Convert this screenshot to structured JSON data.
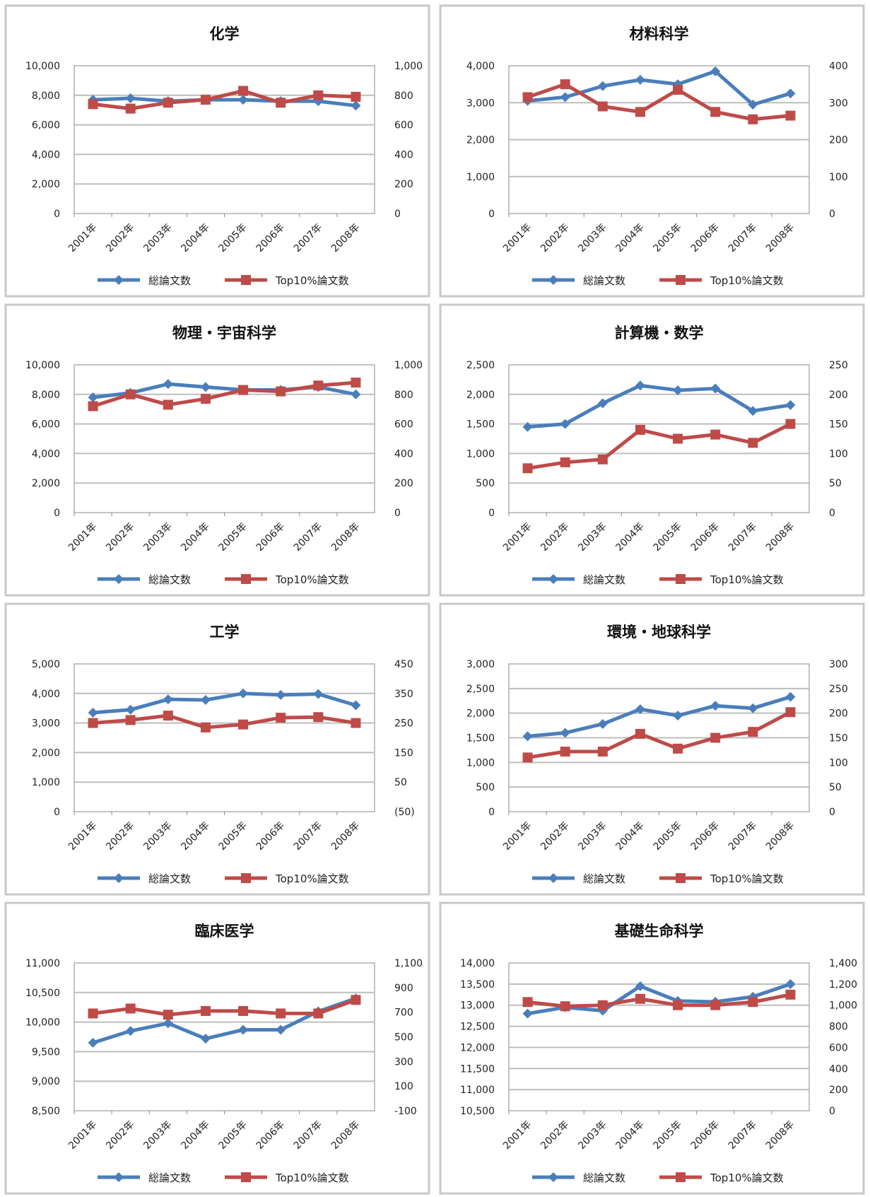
{
  "colors": {
    "total": "#4a7ebb",
    "top10": "#be4b48",
    "grid": "#bdbdbd",
    "frame": "#c8c8c8",
    "plot_border": "#8a8a8a"
  },
  "legend": {
    "total": "総論文数",
    "top10": "Top10%論文数"
  },
  "chart_data": [
    {
      "type": "line",
      "title": "化学",
      "categories": [
        "2001年",
        "2002年",
        "2003年",
        "2004年",
        "2005年",
        "2006年",
        "2007年",
        "2008年"
      ],
      "ylim": [
        0,
        10000
      ],
      "y_ticks": [
        "0",
        "2,000",
        "4,000",
        "6,000",
        "8,000",
        "10,000"
      ],
      "y2lim": [
        0,
        1000
      ],
      "y2_ticks": [
        "0",
        "200",
        "400",
        "600",
        "800",
        "1,000"
      ],
      "grid": true,
      "legend_position": "bottom",
      "series": [
        {
          "name": "総論文数",
          "axis": "left",
          "values": [
            7700,
            7800,
            7600,
            7700,
            7700,
            7600,
            7600,
            7300
          ]
        },
        {
          "name": "Top10%論文数",
          "axis": "right",
          "values": [
            740,
            710,
            750,
            770,
            830,
            750,
            800,
            790
          ]
        }
      ]
    },
    {
      "type": "line",
      "title": "材料科学",
      "categories": [
        "2001年",
        "2002年",
        "2003年",
        "2004年",
        "2005年",
        "2006年",
        "2007年",
        "2008年"
      ],
      "ylim": [
        0,
        4000
      ],
      "y_ticks": [
        "0",
        "1,000",
        "2,000",
        "3,000",
        "4,000"
      ],
      "y2lim": [
        0,
        400
      ],
      "y2_ticks": [
        "0",
        "100",
        "200",
        "300",
        "400"
      ],
      "grid": true,
      "legend_position": "bottom",
      "series": [
        {
          "name": "総論文数",
          "axis": "left",
          "values": [
            3050,
            3150,
            3450,
            3620,
            3500,
            3850,
            2950,
            3250
          ]
        },
        {
          "name": "Top10%論文数",
          "axis": "right",
          "values": [
            315,
            350,
            290,
            275,
            335,
            275,
            255,
            265
          ]
        }
      ]
    },
    {
      "type": "line",
      "title": "物理・宇宙科学",
      "categories": [
        "2001年",
        "2002年",
        "2003年",
        "2004年",
        "2005年",
        "2006年",
        "2007年",
        "2008年"
      ],
      "ylim": [
        0,
        10000
      ],
      "y_ticks": [
        "0",
        "2,000",
        "4,000",
        "6,000",
        "8,000",
        "10,000"
      ],
      "y2lim": [
        0,
        1000
      ],
      "y2_ticks": [
        "0",
        "200",
        "400",
        "600",
        "800",
        "1,000"
      ],
      "grid": true,
      "legend_position": "bottom",
      "series": [
        {
          "name": "総論文数",
          "axis": "left",
          "values": [
            7800,
            8100,
            8700,
            8500,
            8300,
            8300,
            8500,
            8000
          ]
        },
        {
          "name": "Top10%論文数",
          "axis": "right",
          "values": [
            720,
            800,
            730,
            770,
            830,
            820,
            860,
            880
          ]
        }
      ]
    },
    {
      "type": "line",
      "title": "計算機・数学",
      "categories": [
        "2001年",
        "2002年",
        "2003年",
        "2004年",
        "2005年",
        "2006年",
        "2007年",
        "2008年"
      ],
      "ylim": [
        0,
        2500
      ],
      "y_ticks": [
        "0",
        "500",
        "1,000",
        "1,500",
        "2,000",
        "2,500"
      ],
      "y2lim": [
        0,
        250
      ],
      "y2_ticks": [
        "0",
        "50",
        "100",
        "150",
        "200",
        "250"
      ],
      "grid": true,
      "legend_position": "bottom",
      "series": [
        {
          "name": "総論文数",
          "axis": "left",
          "values": [
            1450,
            1500,
            1850,
            2150,
            2070,
            2100,
            1720,
            1820
          ]
        },
        {
          "name": "Top10%論文数",
          "axis": "right",
          "values": [
            75,
            85,
            90,
            140,
            125,
            132,
            118,
            150
          ]
        }
      ]
    },
    {
      "type": "line",
      "title": "工学",
      "categories": [
        "2001年",
        "2002年",
        "2003年",
        "2004年",
        "2005年",
        "2006年",
        "2007年",
        "2008年"
      ],
      "ylim": [
        0,
        5000
      ],
      "y_ticks": [
        "0",
        "1,000",
        "2,000",
        "3,000",
        "4,000",
        "5,000"
      ],
      "y2lim": [
        -50,
        450
      ],
      "y2_ticks": [
        "(50)",
        "50",
        "150",
        "250",
        "350",
        "450"
      ],
      "grid": true,
      "legend_position": "bottom",
      "series": [
        {
          "name": "総論文数",
          "axis": "left",
          "values": [
            3350,
            3450,
            3800,
            3780,
            4000,
            3950,
            3980,
            3600
          ]
        },
        {
          "name": "Top10%論文数",
          "axis": "right",
          "values": [
            250,
            260,
            275,
            235,
            245,
            268,
            270,
            250
          ]
        }
      ]
    },
    {
      "type": "line",
      "title": "環境・地球科学",
      "categories": [
        "2001年",
        "2002年",
        "2003年",
        "2004年",
        "2005年",
        "2006年",
        "2007年",
        "2008年"
      ],
      "ylim": [
        0,
        3000
      ],
      "y_ticks": [
        "0",
        "500",
        "1,000",
        "1,500",
        "2,000",
        "2,500",
        "3,000"
      ],
      "y2lim": [
        0,
        300
      ],
      "y2_ticks": [
        "0",
        "50",
        "100",
        "150",
        "200",
        "250",
        "300"
      ],
      "grid": true,
      "legend_position": "bottom",
      "series": [
        {
          "name": "総論文数",
          "axis": "left",
          "values": [
            1530,
            1600,
            1780,
            2080,
            1950,
            2150,
            2100,
            2330
          ]
        },
        {
          "name": "Top10%論文数",
          "axis": "right",
          "values": [
            110,
            122,
            122,
            158,
            128,
            150,
            162,
            202
          ]
        }
      ]
    },
    {
      "type": "line",
      "title": "臨床医学",
      "categories": [
        "2001年",
        "2002年",
        "2003年",
        "2004年",
        "2005年",
        "2006年",
        "2007年",
        "2008年"
      ],
      "ylim": [
        8500,
        11000
      ],
      "y_ticks": [
        "8,500",
        "9,000",
        "9,500",
        "10,000",
        "10,500",
        "11,000"
      ],
      "y2lim": [
        -100,
        1100
      ],
      "y2_ticks": [
        "-100",
        "100",
        "300",
        "500",
        "700",
        "900",
        "1,100"
      ],
      "grid": true,
      "legend_position": "bottom",
      "series": [
        {
          "name": "総論文数",
          "axis": "left",
          "values": [
            9650,
            9850,
            9980,
            9720,
            9870,
            9870,
            10180,
            10400
          ]
        },
        {
          "name": "Top10%論文数",
          "axis": "right",
          "values": [
            690,
            730,
            680,
            710,
            710,
            690,
            690,
            800
          ]
        }
      ]
    },
    {
      "type": "line",
      "title": "基礎生命科学",
      "categories": [
        "2001年",
        "2002年",
        "2003年",
        "2004年",
        "2005年",
        "2006年",
        "2007年",
        "2008年"
      ],
      "ylim": [
        10500,
        14000
      ],
      "y_ticks": [
        "10,500",
        "11,000",
        "11,500",
        "12,000",
        "12,500",
        "13,000",
        "13,500",
        "14,000"
      ],
      "y2lim": [
        0,
        1400
      ],
      "y2_ticks": [
        "0",
        "200",
        "400",
        "600",
        "800",
        "1,000",
        "1,200",
        "1,400"
      ],
      "grid": true,
      "legend_position": "bottom",
      "series": [
        {
          "name": "総論文数",
          "axis": "left",
          "values": [
            12800,
            12950,
            12870,
            13450,
            13100,
            13080,
            13200,
            13500
          ]
        },
        {
          "name": "Top10%論文数",
          "axis": "right",
          "values": [
            1030,
            990,
            1000,
            1060,
            1000,
            1000,
            1030,
            1100
          ]
        }
      ]
    }
  ]
}
